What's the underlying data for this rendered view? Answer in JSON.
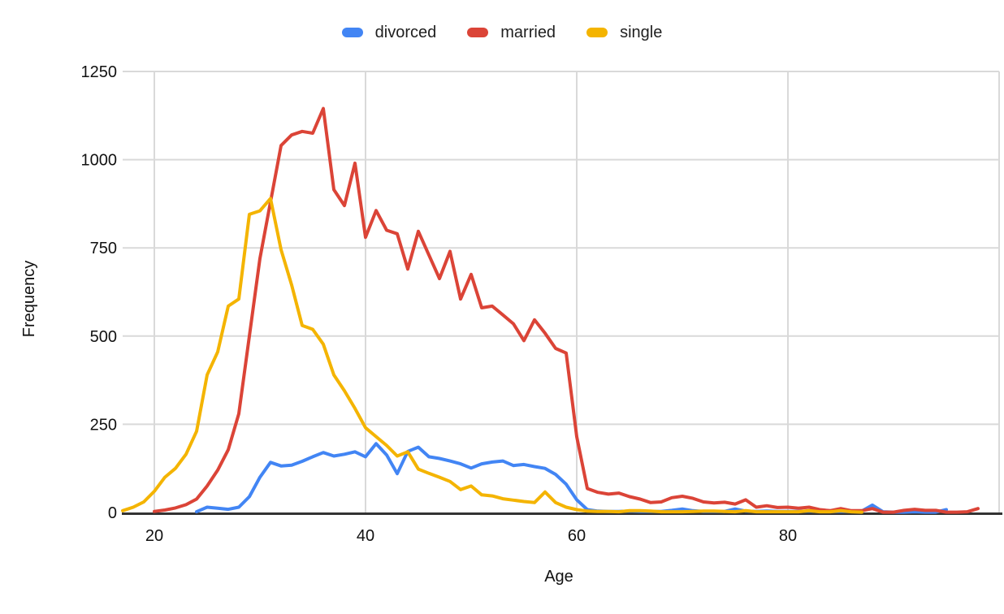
{
  "colors": {
    "background": "#ffffff",
    "grid": "#d9d9d9",
    "axis": "#333333",
    "text": "#111111",
    "series_blue": "#4285F4",
    "series_red": "#DB4437",
    "series_yellow": "#F4B400"
  },
  "legend": {
    "items": [
      {
        "label": "divorced",
        "color": "#4285F4"
      },
      {
        "label": "married",
        "color": "#DB4437"
      },
      {
        "label": "single",
        "color": "#F4B400"
      }
    ]
  },
  "chart_data": {
    "type": "line",
    "title": "",
    "xlabel": "Age",
    "ylabel": "Frequency",
    "xlim": [
      17,
      100
    ],
    "ylim": [
      0,
      1250
    ],
    "x_ticks": [
      20,
      40,
      60,
      80
    ],
    "y_ticks": [
      0,
      250,
      500,
      750,
      1000,
      1250
    ],
    "grid": true,
    "legend_position": "top",
    "series": [
      {
        "name": "divorced",
        "color": "#4285F4",
        "x": [
          24,
          25,
          26,
          27,
          28,
          29,
          30,
          31,
          32,
          33,
          34,
          35,
          36,
          37,
          38,
          39,
          40,
          41,
          42,
          43,
          44,
          45,
          46,
          47,
          48,
          49,
          50,
          51,
          52,
          53,
          54,
          55,
          56,
          57,
          58,
          59,
          60,
          61,
          62,
          63,
          64,
          65,
          66,
          67,
          68,
          69,
          70,
          71,
          72,
          73,
          74,
          75,
          76,
          77,
          78,
          79,
          80,
          81,
          82,
          83,
          84,
          85,
          86,
          87,
          88,
          89,
          90,
          91,
          92,
          93,
          94,
          95
        ],
        "y": [
          2,
          15,
          12,
          9,
          15,
          45,
          100,
          142,
          132,
          134,
          145,
          158,
          170,
          160,
          165,
          172,
          158,
          195,
          163,
          110,
          173,
          185,
          158,
          153,
          146,
          138,
          126,
          138,
          143,
          146,
          133,
          136,
          130,
          125,
          108,
          80,
          36,
          8,
          4,
          3,
          3,
          4,
          3,
          3,
          3,
          6,
          10,
          5,
          3,
          3,
          3,
          10,
          4,
          3,
          4,
          3,
          3,
          3,
          4,
          3,
          3,
          3,
          3,
          4,
          21,
          2,
          1,
          1,
          2,
          1,
          1,
          8
        ]
      },
      {
        "name": "married",
        "color": "#DB4437",
        "x": [
          20,
          21,
          22,
          23,
          24,
          25,
          26,
          27,
          28,
          29,
          30,
          31,
          32,
          33,
          34,
          35,
          36,
          37,
          38,
          39,
          40,
          41,
          42,
          43,
          44,
          45,
          46,
          47,
          48,
          49,
          50,
          51,
          52,
          53,
          54,
          55,
          56,
          57,
          58,
          59,
          60,
          61,
          62,
          63,
          64,
          65,
          66,
          67,
          68,
          69,
          70,
          71,
          72,
          73,
          74,
          75,
          76,
          77,
          78,
          79,
          80,
          81,
          82,
          83,
          84,
          85,
          86,
          87,
          88,
          89,
          90,
          91,
          92,
          93,
          94,
          95,
          96,
          97,
          98
        ],
        "y": [
          3,
          7,
          13,
          22,
          38,
          75,
          120,
          178,
          280,
          500,
          720,
          880,
          1040,
          1070,
          1080,
          1075,
          1145,
          915,
          870,
          990,
          780,
          856,
          800,
          790,
          690,
          797,
          730,
          663,
          740,
          605,
          675,
          580,
          585,
          560,
          535,
          487,
          546,
          508,
          465,
          452,
          215,
          68,
          57,
          52,
          55,
          45,
          38,
          28,
          30,
          42,
          46,
          40,
          30,
          27,
          29,
          24,
          36,
          15,
          19,
          14,
          15,
          12,
          15,
          8,
          5,
          11,
          5,
          5,
          11,
          1,
          1,
          6,
          9,
          6,
          6,
          1,
          1,
          2,
          11
        ]
      },
      {
        "name": "single",
        "color": "#F4B400",
        "x": [
          17,
          18,
          19,
          20,
          21,
          22,
          23,
          24,
          25,
          26,
          27,
          28,
          29,
          30,
          31,
          32,
          33,
          34,
          35,
          36,
          37,
          38,
          39,
          40,
          41,
          42,
          43,
          44,
          45,
          46,
          47,
          48,
          49,
          50,
          51,
          52,
          53,
          54,
          55,
          56,
          57,
          58,
          59,
          60,
          61,
          62,
          63,
          64,
          65,
          66,
          67,
          68,
          69,
          70,
          71,
          72,
          73,
          74,
          75,
          76,
          77,
          78,
          79,
          80,
          81,
          82,
          83,
          84,
          85,
          86,
          87
        ],
        "y": [
          5,
          15,
          30,
          60,
          100,
          125,
          165,
          230,
          390,
          455,
          585,
          605,
          845,
          855,
          890,
          745,
          645,
          530,
          519,
          477,
          390,
          345,
          295,
          240,
          215,
          190,
          160,
          172,
          123,
          111,
          100,
          88,
          65,
          75,
          50,
          47,
          39,
          35,
          31,
          28,
          58,
          28,
          15,
          8,
          4,
          3,
          3,
          2,
          5,
          5,
          4,
          2,
          2,
          2,
          3,
          4,
          4,
          3,
          2,
          5,
          2,
          2,
          2,
          2,
          2,
          5,
          2,
          2,
          5,
          2,
          1
        ]
      }
    ]
  }
}
